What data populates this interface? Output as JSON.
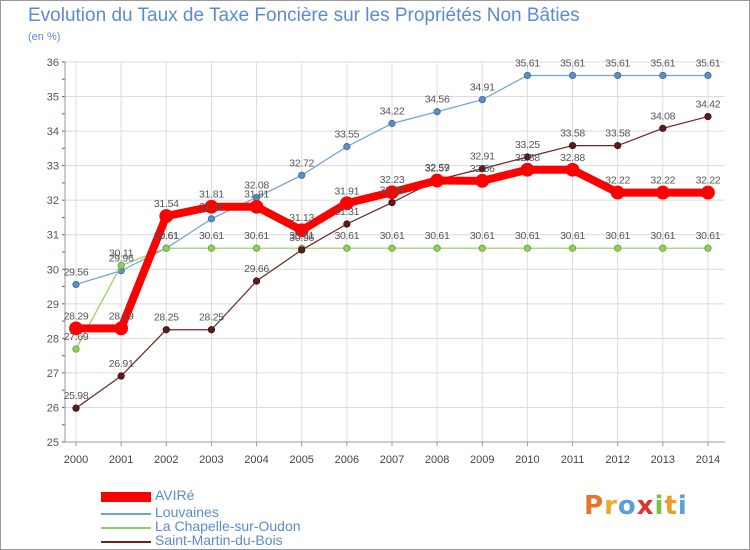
{
  "title": "Evolution du Taux de Taxe Foncière sur les Propriétés Non Bâties",
  "unit_label": "(en %)",
  "brand": {
    "text": "Proxiti"
  },
  "chart_data": {
    "type": "line",
    "title": "Evolution du Taux de Taxe Foncière sur les Propriétés Non Bâties",
    "ylabel": "(en %)",
    "xlabel": "",
    "ylim": [
      25,
      36
    ],
    "yticks": [
      25,
      26,
      27,
      28,
      29,
      30,
      31,
      32,
      33,
      34,
      35,
      36
    ],
    "grid": true,
    "legend_position": "bottom-left",
    "categories": [
      "2000",
      "2001",
      "2002",
      "2003",
      "2004",
      "2005",
      "2006",
      "2007",
      "2008",
      "2009",
      "2010",
      "2011",
      "2012",
      "2013",
      "2014"
    ],
    "series": [
      {
        "name": "Louvaines",
        "color": "#6fa1d2",
        "values": [
          29.56,
          29.96,
          30.61,
          31.46,
          32.08,
          32.72,
          33.55,
          34.22,
          34.56,
          34.91,
          35.61,
          35.61,
          35.61,
          35.61,
          35.61
        ],
        "labels": [
          "29.56",
          "29.96",
          "30.61",
          "31.46",
          "32.08",
          "32.72",
          "33.55",
          "34.22",
          "34.56",
          "34.91",
          "35.61",
          "35.61",
          "35.61",
          "35.61",
          "35.61"
        ]
      },
      {
        "name": "La Chapelle-sur-Oudon",
        "color": "#8fd05c",
        "values": [
          27.69,
          30.11,
          30.61,
          30.61,
          30.61,
          30.61,
          30.61,
          30.61,
          30.61,
          30.61,
          30.61,
          30.61,
          30.61,
          30.61,
          30.61
        ],
        "labels": [
          "27.69",
          "30.11",
          "30.61",
          "30.61",
          "30.61",
          "30.61",
          "30.61",
          "30.61",
          "30.61",
          "30.61",
          "30.61",
          "30.61",
          "30.61",
          "30.61",
          "30.61"
        ]
      },
      {
        "name": "Saint-Martin-du-Bois",
        "color": "#6b2424",
        "values": [
          25.98,
          26.91,
          28.25,
          28.25,
          29.66,
          30.56,
          31.31,
          31.93,
          32.59,
          32.91,
          33.25,
          33.58,
          33.58,
          34.08,
          34.42
        ],
        "labels": [
          "25.98",
          "26.91",
          "28.25",
          "28.25",
          "29.66",
          "30.56",
          "31.31",
          "31.93",
          "32.59",
          "32.91",
          "33.25",
          "33.58",
          "33.58",
          "34.08",
          "34.42"
        ]
      },
      {
        "name": "AVIRé",
        "color": "#ff0000",
        "values": [
          28.29,
          28.29,
          31.54,
          31.81,
          31.81,
          31.13,
          31.91,
          32.23,
          32.57,
          32.56,
          32.88,
          32.88,
          32.22,
          32.22,
          32.22
        ],
        "labels": [
          "28.29",
          "28.29",
          "31.54",
          "31.81",
          "31.81",
          "31.13",
          "31.91",
          "32.23",
          "32.57",
          "32.56",
          "32.88",
          "32.88",
          "32.22",
          "32.22",
          "32.22"
        ]
      }
    ],
    "legend": [
      "AVIRé",
      "Louvaines",
      "La Chapelle-sur-Oudon",
      "Saint-Martin-du-Bois"
    ]
  }
}
